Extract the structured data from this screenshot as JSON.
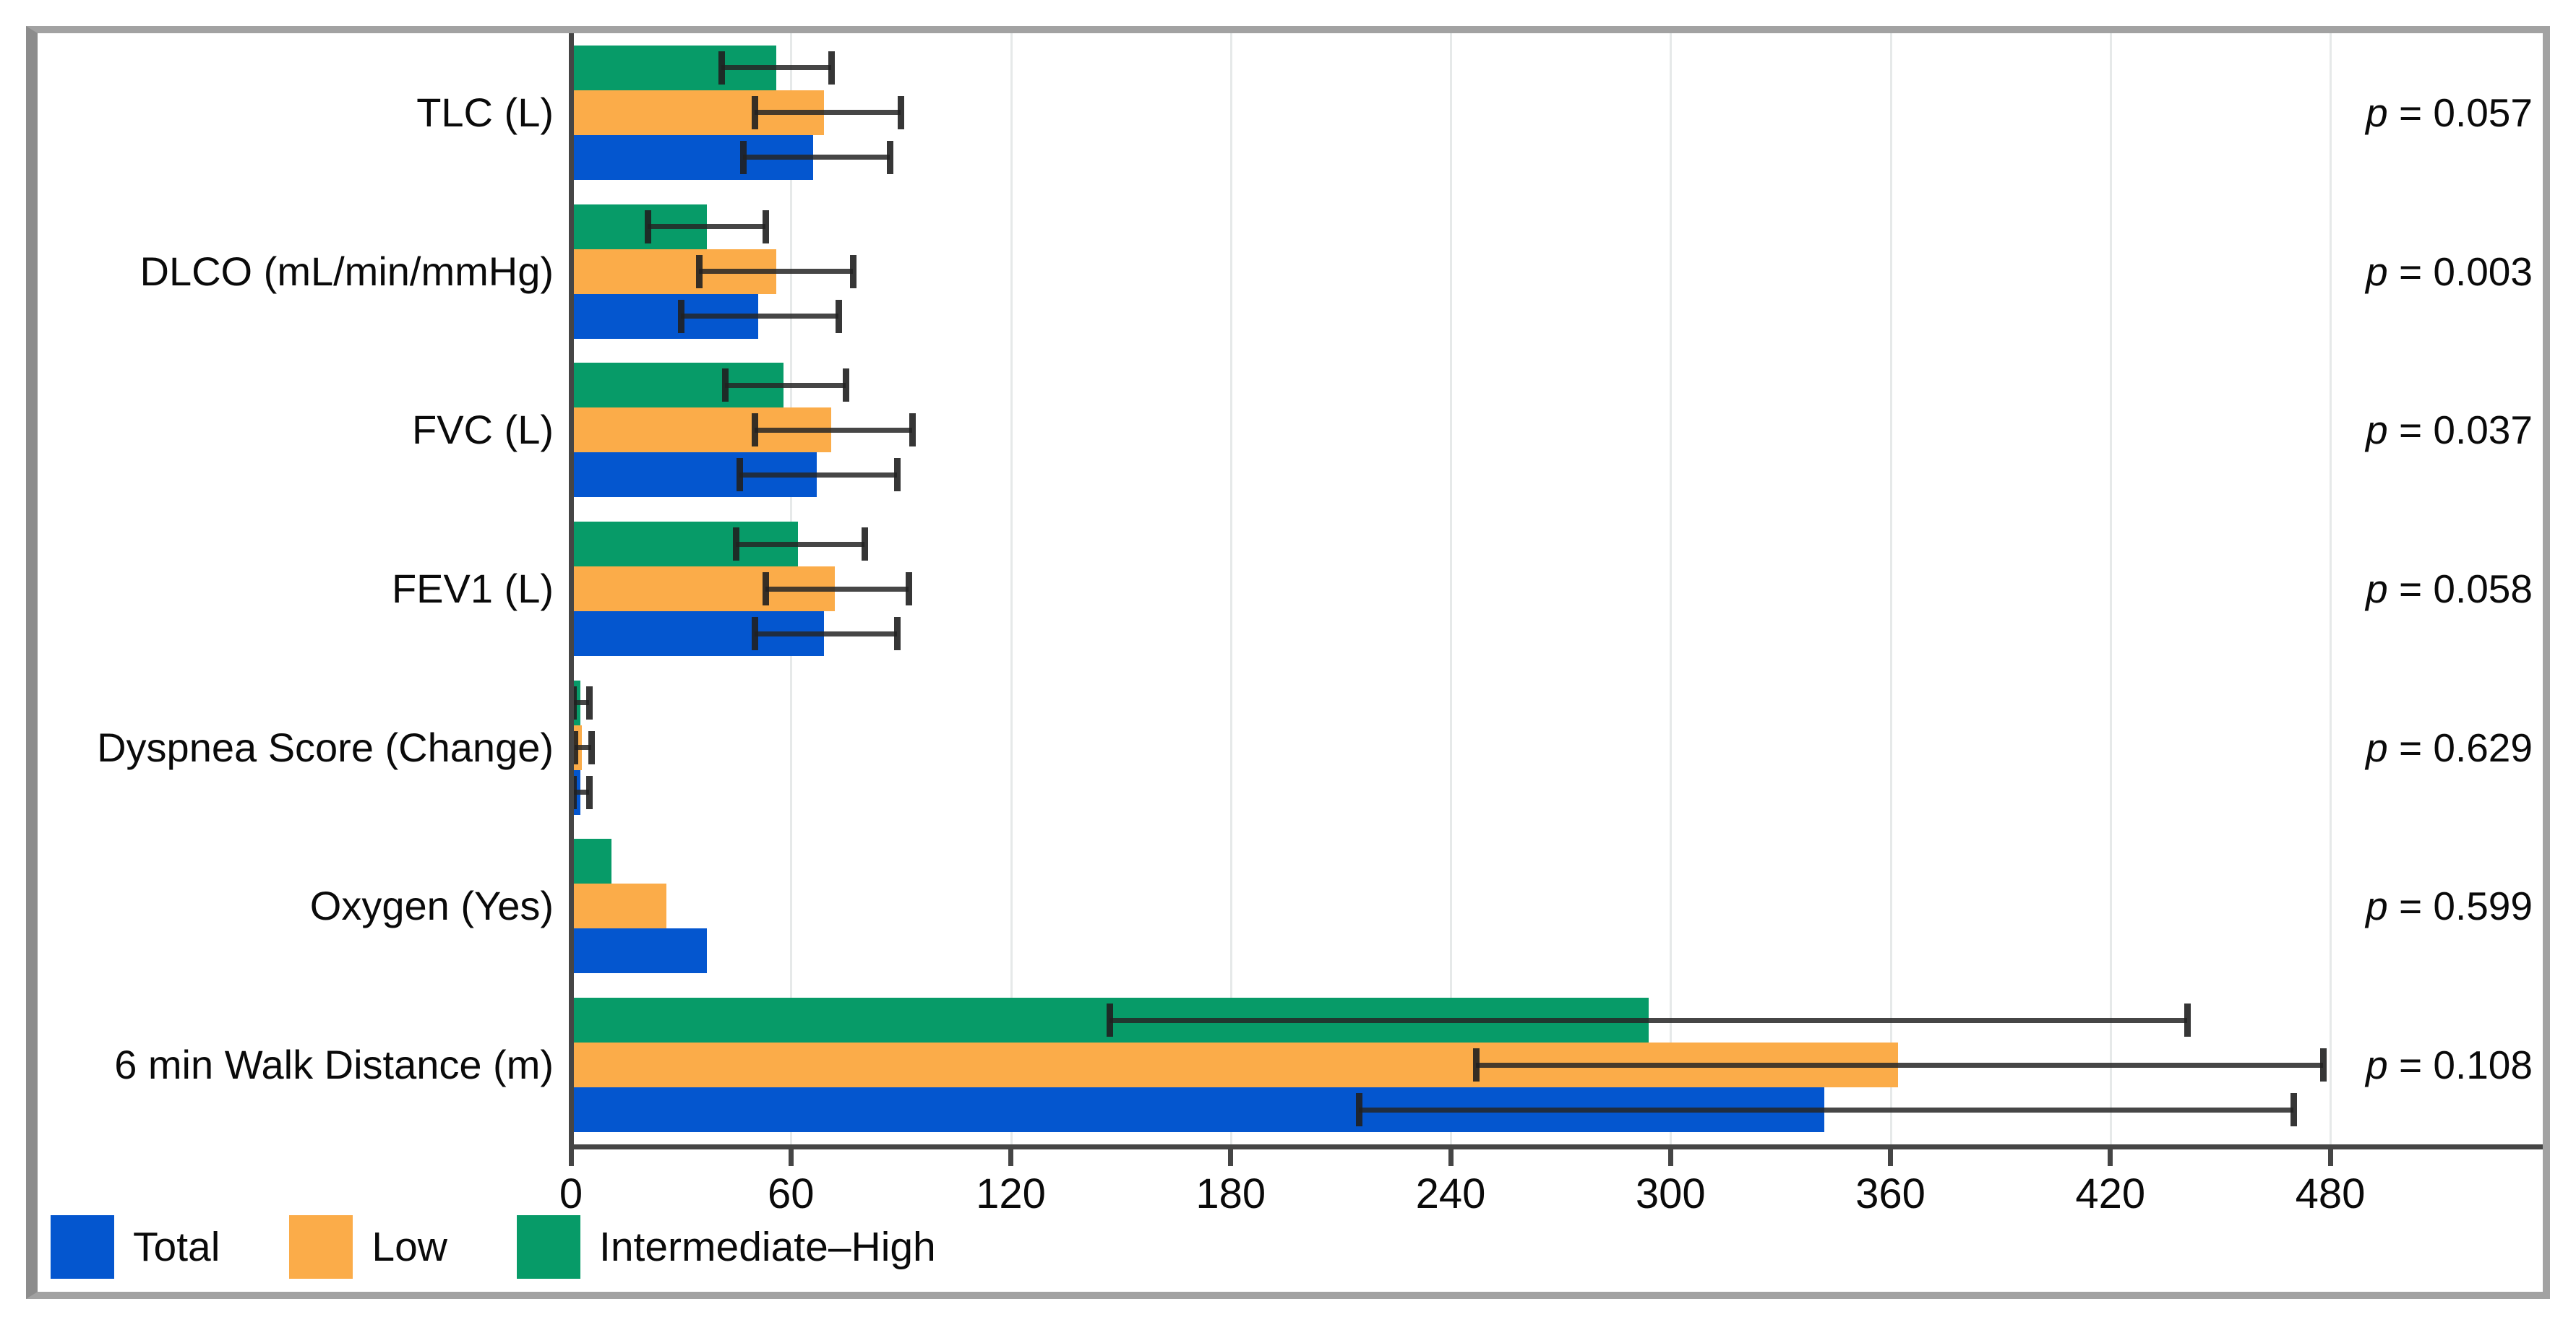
{
  "figure": {
    "p_symbol": "p",
    "p_separator": " = "
  },
  "chart_data": {
    "type": "bar",
    "orientation": "horizontal-grouped",
    "title": "",
    "xlabel": "",
    "ylabel": "",
    "xlim": [
      0,
      480
    ],
    "x_ticks": [
      0,
      60,
      120,
      180,
      240,
      300,
      360,
      420,
      480
    ],
    "grid": true,
    "legend_position": "bottom-left",
    "bar_display_order_top_to_bottom": [
      "Intermediate–High",
      "Low",
      "Total"
    ],
    "categories": [
      "TLC (L)",
      "DLCO (mL/min/mmHg)",
      "FVC (L)",
      "FEV1 (L)",
      "Dyspnea Score (Change)",
      "Oxygen (Yes)",
      "6 min Walk Distance (m)"
    ],
    "p_values": [
      "0.057",
      "0.003",
      "0.037",
      "0.058",
      "0.629",
      "0.599",
      "0.108"
    ],
    "series": [
      {
        "name": "Total",
        "color": "#0456CF",
        "values": [
          66,
          51,
          67,
          69,
          2.5,
          37,
          342
        ],
        "err_lo": [
          47,
          30,
          46,
          50,
          0.5,
          null,
          215
        ],
        "err_hi": [
          87,
          73,
          89,
          89,
          5.0,
          null,
          470
        ]
      },
      {
        "name": "Low",
        "color": "#FBAC49",
        "values": [
          69,
          56,
          71,
          72,
          3.0,
          26,
          362
        ],
        "err_lo": [
          50,
          35,
          50,
          53,
          1.0,
          null,
          247
        ],
        "err_hi": [
          90,
          77,
          93,
          92,
          5.5,
          null,
          478
        ]
      },
      {
        "name": "Intermediate–High",
        "color": "#079B68",
        "values": [
          56,
          37,
          58,
          62,
          2.5,
          11,
          294
        ],
        "err_lo": [
          41,
          21,
          42,
          45,
          0.5,
          null,
          147
        ],
        "err_hi": [
          71,
          53,
          75,
          80,
          5.0,
          null,
          441
        ]
      }
    ]
  }
}
